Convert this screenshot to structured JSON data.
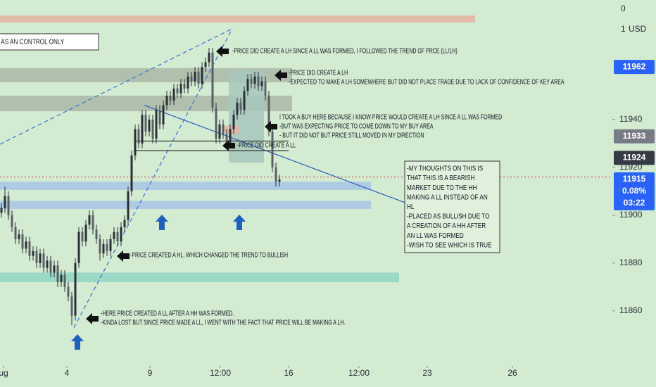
{
  "chart_data": {
    "type": "candlestick",
    "ylim": [
      11837,
      11990
    ],
    "yticks": [
      11940,
      11920,
      11900,
      11880,
      11860
    ],
    "axis_fragments": [
      "0",
      "1"
    ],
    "currency": "USD",
    "xlim": [
      0,
      174
    ],
    "xticks": [
      {
        "value": 1,
        "label": "ug"
      },
      {
        "value": 19,
        "label": "4"
      },
      {
        "value": 42.6,
        "label": "9"
      },
      {
        "value": 62.6,
        "label": "12:00"
      },
      {
        "value": 82,
        "label": "16"
      },
      {
        "value": 102,
        "label": "12:00"
      },
      {
        "value": 121.4,
        "label": "23"
      },
      {
        "value": 145.6,
        "label": "26"
      }
    ],
    "candle_color": "#2b2f36",
    "ohlc": [
      [
        11901,
        11905,
        11899,
        11903
      ],
      [
        11903,
        11912,
        11901,
        11908
      ],
      [
        11908,
        11910,
        11898,
        11900
      ],
      [
        11900,
        11902,
        11893,
        11895
      ],
      [
        11895,
        11897,
        11888,
        11890
      ],
      [
        11890,
        11894,
        11888,
        11892
      ],
      [
        11892,
        11894,
        11884,
        11886
      ],
      [
        11886,
        11891,
        11884,
        11889
      ],
      [
        11889,
        11891,
        11881,
        11883
      ],
      [
        11883,
        11887,
        11881,
        11885
      ],
      [
        11885,
        11887,
        11878,
        11880
      ],
      [
        11880,
        11886,
        11878,
        11884
      ],
      [
        11884,
        11886,
        11876,
        11878
      ],
      [
        11878,
        11883,
        11876,
        11881
      ],
      [
        11881,
        11883,
        11874,
        11876
      ],
      [
        11876,
        11881,
        11874,
        11879
      ],
      [
        11879,
        11881,
        11870,
        11872
      ],
      [
        11872,
        11877,
        11870,
        11875
      ],
      [
        11875,
        11877,
        11868,
        11870
      ],
      [
        11870,
        11872,
        11864,
        11866
      ],
      [
        11866,
        11868,
        11854,
        11858
      ],
      [
        11858,
        11882,
        11856,
        11880
      ],
      [
        11880,
        11895,
        11878,
        11893
      ],
      [
        11893,
        11895,
        11887,
        11889
      ],
      [
        11889,
        11898,
        11887,
        11896
      ],
      [
        11896,
        11902,
        11894,
        11900
      ],
      [
        11900,
        11902,
        11892,
        11894
      ],
      [
        11894,
        11896,
        11888,
        11890
      ],
      [
        11890,
        11892,
        11881,
        11884
      ],
      [
        11884,
        11890,
        11882,
        11888
      ],
      [
        11888,
        11890,
        11883,
        11885
      ],
      [
        11885,
        11892,
        11883,
        11890
      ],
      [
        11890,
        11895,
        11888,
        11893
      ],
      [
        11893,
        11895,
        11887,
        11889
      ],
      [
        11889,
        11897,
        11887,
        11895
      ],
      [
        11895,
        11900,
        11893,
        11898
      ],
      [
        11898,
        11912,
        11896,
        11910
      ],
      [
        11910,
        11927,
        11908,
        11925
      ],
      [
        11925,
        11938,
        11923,
        11936
      ],
      [
        11936,
        11938,
        11928,
        11930
      ],
      [
        11930,
        11944,
        11928,
        11942
      ],
      [
        11942,
        11944,
        11933,
        11935
      ],
      [
        11935,
        11942,
        11933,
        11940
      ],
      [
        11940,
        11942,
        11930,
        11932
      ],
      [
        11932,
        11946,
        11930,
        11944
      ],
      [
        11944,
        11946,
        11936,
        11938
      ],
      [
        11938,
        11948,
        11936,
        11946
      ],
      [
        11946,
        11952,
        11944,
        11950
      ],
      [
        11950,
        11952,
        11946,
        11948
      ],
      [
        11948,
        11955,
        11946,
        11953
      ],
      [
        11953,
        11955,
        11949,
        11951
      ],
      [
        11951,
        11957,
        11949,
        11955
      ],
      [
        11955,
        11957,
        11951,
        11953
      ],
      [
        11953,
        11960,
        11951,
        11958
      ],
      [
        11958,
        11960,
        11954,
        11956
      ],
      [
        11956,
        11962,
        11954,
        11960
      ],
      [
        11960,
        11962,
        11953,
        11955
      ],
      [
        11955,
        11964,
        11953,
        11962
      ],
      [
        11962,
        11966,
        11960,
        11964
      ],
      [
        11964,
        11970,
        11962,
        11968
      ],
      [
        11968,
        11970,
        11943,
        11945
      ],
      [
        11945,
        11947,
        11930,
        11932
      ],
      [
        11932,
        11940,
        11930,
        11938
      ],
      [
        11938,
        11940,
        11932,
        11934
      ],
      [
        11934,
        11936,
        11928,
        11930
      ],
      [
        11930,
        11938,
        11928,
        11936
      ],
      [
        11936,
        11944,
        11934,
        11942
      ],
      [
        11942,
        11949,
        11940,
        11947
      ],
      [
        11947,
        11949,
        11942,
        11944
      ],
      [
        11944,
        11954,
        11942,
        11952
      ],
      [
        11952,
        11959,
        11950,
        11957
      ],
      [
        11957,
        11959,
        11953,
        11955
      ],
      [
        11955,
        11960,
        11953,
        11958
      ],
      [
        11958,
        11960,
        11952,
        11954
      ],
      [
        11954,
        11958,
        11952,
        11956
      ],
      [
        11956,
        11958,
        11948,
        11950
      ],
      [
        11950,
        11952,
        11933,
        11935
      ],
      [
        11935,
        11937,
        11918,
        11920
      ],
      [
        11920,
        11922,
        11912,
        11914
      ],
      [
        11914,
        11917,
        11912,
        11915
      ]
    ],
    "zones": [
      {
        "ylim": [
          11980.6,
          11983.5
        ],
        "xlim": [
          0,
          135
        ],
        "color": "#e4b4a2"
      },
      {
        "ylim": [
          11955.6,
          11961.5
        ],
        "xlim": [
          0,
          83
        ],
        "color": "#a9b8a6"
      },
      {
        "ylim": [
          11943.5,
          11950
        ],
        "xlim": [
          0,
          83
        ],
        "color": "#a9b8a6"
      },
      {
        "ylim": [
          11922,
          11960.6
        ],
        "xlim": [
          65,
          75
        ],
        "color": "#a7c7bd"
      },
      {
        "ylim": [
          11934,
          11937.5
        ],
        "xlim": [
          63,
          68
        ],
        "color": "#e3b6a6"
      },
      {
        "ylim": [
          11910.6,
          11914
        ],
        "xlim": [
          0,
          105.4
        ],
        "color": "#a7c6e6"
      },
      {
        "ylim": [
          11902.6,
          11906
        ],
        "xlim": [
          0,
          105.4
        ],
        "color": "#a7c6e6"
      },
      {
        "ylim": [
          11872,
          11876
        ],
        "xlim": [
          0,
          113.4
        ],
        "color": "#8fd6c2"
      }
    ],
    "lines": [
      {
        "points": [
          [
            0,
            11929.7
          ],
          [
            66,
            11978
          ]
        ],
        "color": "#3b6fd6",
        "style": "dashed"
      },
      {
        "points": [
          [
            21,
            11853
          ],
          [
            66,
            11978
          ]
        ],
        "color": "#3b6fd6",
        "style": "dashed"
      },
      {
        "points": [
          [
            41,
            11946
          ],
          [
            115.6,
            11905
          ]
        ],
        "color": "#2a5cb8",
        "style": "solid"
      },
      {
        "points": [
          [
            38,
            11931
          ],
          [
            82,
            11931
          ]
        ],
        "color": "#333333",
        "style": "solid"
      },
      {
        "points": [
          [
            38,
            11927
          ],
          [
            82,
            11927
          ]
        ],
        "color": "#333333",
        "style": "solid"
      },
      {
        "points": [
          [
            0,
            11916
          ],
          [
            174,
            11916
          ]
        ],
        "color": "#d65a5a",
        "style": "dotted"
      }
    ],
    "price_labels": [
      {
        "value": 11962,
        "color": "#2962ff"
      },
      {
        "value": 11933,
        "color": "#787b86"
      },
      {
        "value": 11924,
        "color": "#363a45"
      },
      {
        "value": 11915,
        "color": "#2962ff",
        "extra": [
          "0.08%",
          "03:22"
        ]
      }
    ],
    "annotations": [
      [
        "-PRICE DID CREATE A LH SINCE A LL WAS FORMED, I FOLLOWED THE TREND OF PRCE (LL/LH)"
      ],
      [
        "-PRICE DID CREATE A LH",
        "-EXPECTED TO MAKE A LH SOMEWHERE BUT DID NOT PLACE TRADE DUE TO LACK OF CONFIDENCE OF KEY AREA"
      ],
      [
        "I TOOK A BUY HERE BECAUSE I KNOW PRICE WOULD CREATE A LH SINCE A LL WAS FORMED",
        "-BUT WAS EXPECTING PRICE TO COME DOWN TO MY BUY AREA",
        "- BUT IT DID NOT BUT PRICE STILL MOVED IN MY DIRECTION"
      ],
      [
        "-PRICE DID CREATE A LL"
      ],
      [
        "-MY THOUGHTS ON THIS IS",
        "THAT THIS IS A BEARISH",
        "MARKET DUE TO THE HH",
        "MAKING A LL INSTEAD OF AN",
        "HL",
        "-PLACED AS BULLISH DUE TO",
        "A CREATION OF A HH AFTER",
        "AN LL WAS FORMED",
        "-WISH TO SEE WHICH IS TRUE"
      ],
      [
        "-PRICE CREATED A HL, WHICH CHANGED THE TREND TO BULLISH"
      ],
      [
        "-HERE PRICE CREATED A LL AFTER A HH WAS FORMED.",
        "-KINDA LOST BUT SINCE PRICE MADE A LL, I WENT WITH THE FACT THAT PRICE WILL BE MAKING A LH."
      ],
      [
        "E AS AN CONTROL ONLY"
      ]
    ]
  }
}
